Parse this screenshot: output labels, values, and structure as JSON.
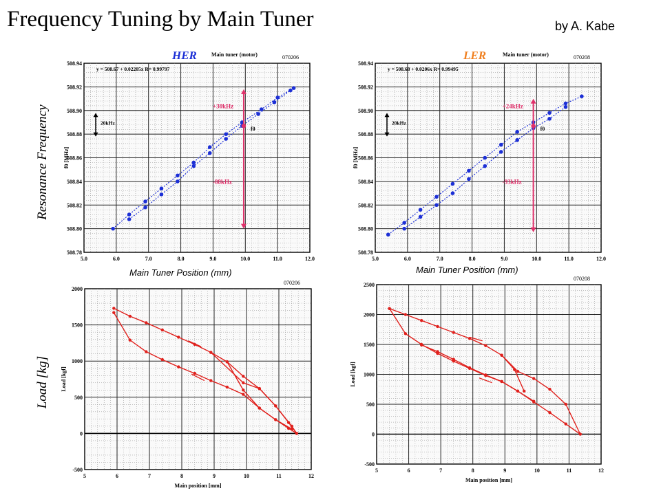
{
  "slide": {
    "title": "Frequency Tuning by Main Tuner",
    "byline": "by A. Kabe",
    "ylabel_top": "Resonance Frequency",
    "ylabel_bottom": "Load [kg]",
    "xcaption_left": "Main Tuner Position (mm)",
    "xcaption_right": "Main Tuner Position (mm)"
  },
  "colors": {
    "freq_series": "#1c2fd6",
    "load_series": "#e0201c",
    "marker": "#e0306a",
    "her_label": "#1c2fd6",
    "ler_label": "#f08020"
  },
  "chart_data": [
    {
      "type": "scatter",
      "title": "HER",
      "subtitle": "Main tuner (motor)",
      "code": "070206",
      "fit": "y = 508.67 + 0.02205x  R= 0.99797",
      "ylabel": "f0 [MHz]",
      "xlabel": "",
      "xlim": [
        5.0,
        12.0
      ],
      "ylim": [
        508.78,
        508.94
      ],
      "xticks": [
        "5.0",
        "6.0",
        "7.0",
        "8.0",
        "9.0",
        "10.0",
        "11.0",
        "12.0"
      ],
      "yticks": [
        "508.78",
        "508.80",
        "508.82",
        "508.84",
        "508.86",
        "508.88",
        "508.90",
        "508.92",
        "508.94"
      ],
      "annotations": [
        "+30kHz",
        "-88kHz",
        "20kHz",
        "f0"
      ],
      "series": [
        {
          "x": [
            5.9,
            6.4,
            6.9,
            7.4,
            7.9,
            8.4,
            8.9,
            9.4,
            9.9,
            10.5,
            11.0,
            11.5
          ],
          "y": [
            508.8,
            508.812,
            508.823,
            508.834,
            508.845,
            508.856,
            508.869,
            508.88,
            508.89,
            508.901,
            508.911,
            508.919
          ]
        },
        {
          "x": [
            6.4,
            6.9,
            7.4,
            7.9,
            8.4,
            8.9,
            9.4,
            9.9,
            10.4,
            10.9,
            11.4
          ],
          "y": [
            508.808,
            508.818,
            508.829,
            508.84,
            508.853,
            508.864,
            508.876,
            508.887,
            508.897,
            508.907,
            508.917
          ]
        }
      ],
      "marker_x": 9.95,
      "arrow_range": [
        508.918,
        508.8
      ]
    },
    {
      "type": "scatter",
      "title": "LER",
      "subtitle": "Main tuner (motor)",
      "code": "070208",
      "fit": "y = 508.68 + 0.0206x  R= 0.99495",
      "ylabel": "f0 [MHz]",
      "xlabel": "",
      "xlim": [
        5.0,
        12.0
      ],
      "ylim": [
        508.78,
        508.94
      ],
      "xticks": [
        "5.0",
        "6.0",
        "7.0",
        "8.0",
        "9.0",
        "10.0",
        "11.0",
        "12.0"
      ],
      "yticks": [
        "508.78",
        "508.80",
        "508.82",
        "508.84",
        "508.86",
        "508.88",
        "508.90",
        "508.92",
        "508.94"
      ],
      "annotations": [
        "+24kHz",
        "-93kHz",
        "20kHz",
        "f0"
      ],
      "series": [
        {
          "x": [
            5.4,
            5.9,
            6.4,
            6.9,
            7.4,
            7.9,
            8.4,
            8.9,
            9.4,
            9.9,
            10.4,
            10.9,
            11.4
          ],
          "y": [
            508.795,
            508.805,
            508.816,
            508.827,
            508.838,
            508.849,
            508.86,
            508.871,
            508.882,
            508.89,
            508.898,
            508.906,
            508.912
          ]
        },
        {
          "x": [
            5.9,
            6.4,
            6.9,
            7.4,
            7.9,
            8.4,
            8.9,
            9.4,
            9.9,
            10.4,
            10.9
          ],
          "y": [
            508.8,
            508.81,
            508.82,
            508.83,
            508.842,
            508.853,
            508.865,
            508.875,
            508.885,
            508.893,
            508.903
          ]
        }
      ],
      "marker_x": 9.9,
      "arrow_range": [
        508.91,
        508.797
      ]
    },
    {
      "type": "line",
      "title": "HER",
      "code": "070206",
      "ylabel": "Load [kgf]",
      "xlabel": "Main position [mm]",
      "xlim": [
        5,
        12
      ],
      "ylim": [
        -500,
        2000
      ],
      "xticks": [
        "5",
        "6",
        "7",
        "8",
        "9",
        "10",
        "11",
        "12"
      ],
      "yticks": [
        "-500",
        "0",
        "500",
        "1000",
        "1500",
        "2000"
      ],
      "series": [
        {
          "x": [
            5.9,
            6.4,
            6.9,
            7.4,
            7.9,
            8.4,
            8.9,
            9.4,
            9.9,
            10.4,
            10.9,
            11.4,
            11.55
          ],
          "y": [
            1730,
            1620,
            1530,
            1430,
            1330,
            1230,
            1120,
            990,
            790,
            620,
            380,
            100,
            0
          ]
        },
        {
          "x": [
            5.9,
            6.4,
            6.9,
            7.4,
            7.9,
            8.4,
            8.9,
            9.4,
            9.9,
            10.4,
            10.9,
            11.3,
            11.55
          ],
          "y": [
            1670,
            1290,
            1130,
            1020,
            920,
            830,
            730,
            640,
            540,
            350,
            190,
            70,
            0
          ]
        },
        {
          "x": [
            8.9,
            9.9,
            10.4,
            10.9,
            11.3,
            11.55
          ],
          "y": [
            1120,
            700,
            620,
            380,
            150,
            0
          ]
        },
        {
          "x": [
            9.4,
            9.9,
            10.4,
            10.9,
            11.4
          ],
          "y": [
            990,
            600,
            350,
            190,
            60
          ]
        }
      ]
    },
    {
      "type": "line",
      "title": "LER",
      "code": "070208",
      "ylabel": "Load [kgf]",
      "xlabel": "Main position [mm]",
      "xlim": [
        5,
        12
      ],
      "ylim": [
        -500,
        2500
      ],
      "xticks": [
        "5",
        "6",
        "7",
        "8",
        "9",
        "10",
        "11",
        "12"
      ],
      "yticks": [
        "-500",
        "0",
        "500",
        "1000",
        "1500",
        "2000",
        "2500"
      ],
      "series": [
        {
          "x": [
            5.4,
            5.9,
            6.4,
            6.9,
            7.4,
            7.9,
            8.4,
            8.9,
            9.4,
            9.9,
            10.4,
            10.9,
            11.35
          ],
          "y": [
            2100,
            2000,
            1900,
            1800,
            1700,
            1600,
            1480,
            1320,
            1050,
            930,
            750,
            500,
            0
          ]
        },
        {
          "x": [
            5.4,
            5.9,
            6.4,
            6.9,
            7.4,
            7.9,
            8.4,
            8.9,
            9.4,
            9.9,
            10.4,
            10.9,
            11.35
          ],
          "y": [
            2100,
            1680,
            1500,
            1350,
            1220,
            1100,
            980,
            880,
            720,
            540,
            360,
            170,
            0
          ]
        },
        {
          "x": [
            6.4,
            6.9,
            7.4,
            7.9,
            8.4,
            8.9,
            9.4,
            9.9
          ],
          "y": [
            1490,
            1380,
            1250,
            1110,
            990,
            880,
            720,
            550
          ]
        },
        {
          "x": [
            8.9,
            9.3,
            9.6
          ],
          "y": [
            1320,
            1080,
            720
          ]
        }
      ]
    }
  ]
}
